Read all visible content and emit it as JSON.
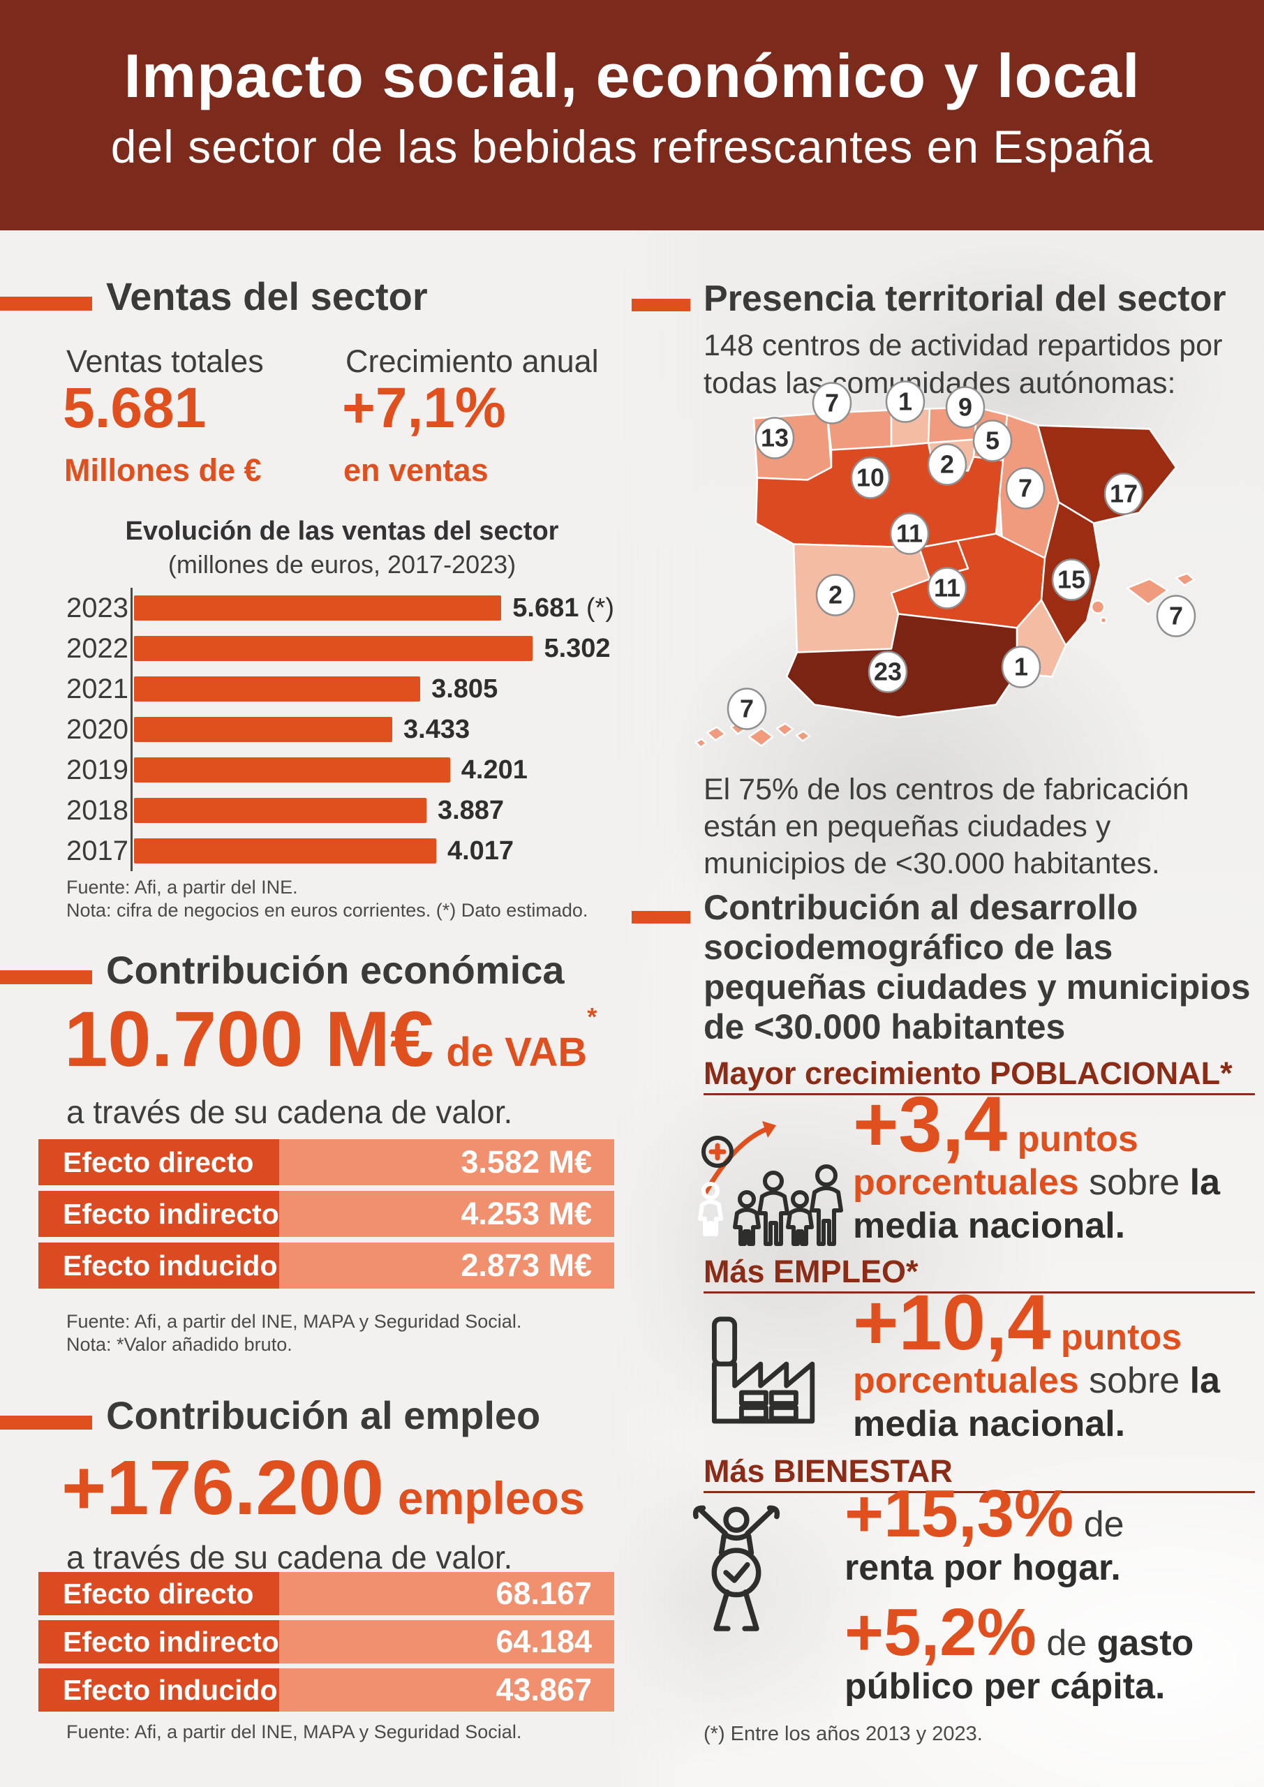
{
  "palette": {
    "header_bg": "#7B2A1B",
    "accent_orange": "#E0501F",
    "table_label_bg": "#DC4A22",
    "table_value_bg": "#F1906E",
    "dark_text": "#3A3A38",
    "maroon_subhead": "#8C2B16",
    "badge_border": "#8F8F8F",
    "page_bg": "#F2F1EF",
    "map_tones": {
      "pale": "#F5BCA4",
      "salmon": "#F09B7E",
      "orange": "#DC4A22",
      "dark2": "#9C2D12",
      "dark1": "#7C2413"
    }
  },
  "header": {
    "title": "Impacto social, económico y local",
    "subtitle": "del sector de las bebidas refrescantes en España"
  },
  "sales": {
    "heading": "Ventas del sector",
    "total_label": "Ventas totales",
    "total_value": "5.681",
    "total_unit": "Millones de €",
    "growth_label": "Crecimiento anual",
    "growth_value": "+7,1%",
    "growth_unit": "en ventas"
  },
  "chart_data": {
    "type": "bar",
    "title": "Evolución de las ventas del sector",
    "subtitle": "(millones de euros, 2017-2023)",
    "categories": [
      "2023",
      "2022",
      "2021",
      "2020",
      "2019",
      "2018",
      "2017"
    ],
    "values": [
      5681,
      5302,
      3805,
      3433,
      4201,
      3887,
      4017
    ],
    "labels": [
      "5.681",
      "5.302",
      "3.805",
      "3.433",
      "4.201",
      "3.887",
      "4.017"
    ],
    "notes": [
      " (*)",
      "",
      "",
      "",
      "",
      "",
      ""
    ],
    "xlabel": "",
    "ylabel": "",
    "xlim": [
      0,
      5681
    ],
    "grid": false,
    "legend": "none",
    "source": "Fuente: Afi, a partir del INE.",
    "note": "Nota: cifra de negocios en euros corrientes. (*) Dato estimado."
  },
  "economic": {
    "heading": "Contribución económica",
    "big": "10.700 M€",
    "big_suffix": "de VAB",
    "big_sup": "*",
    "tagline": "a través de su cadena de valor.",
    "rows": [
      {
        "label": "Efecto directo",
        "value": "3.582 M€"
      },
      {
        "label": "Efecto indirecto",
        "value": "4.253 M€"
      },
      {
        "label": "Efecto inducido",
        "value": "2.873 M€"
      }
    ],
    "source": "Fuente: Afi, a partir del INE, MAPA y Seguridad Social.",
    "note": "Nota: *Valor añadido bruto."
  },
  "employment": {
    "heading": "Contribución al empleo",
    "big": "+176.200",
    "big_suffix": "empleos",
    "tagline": "a través de su cadena de valor.",
    "rows": [
      {
        "label": "Efecto directo",
        "value": "68.167"
      },
      {
        "label": "Efecto indirecto",
        "value": "64.184"
      },
      {
        "label": "Efecto inducido",
        "value": "43.867"
      }
    ],
    "source": "Fuente: Afi, a partir del INE, MAPA y Seguridad Social."
  },
  "territorial": {
    "heading": "Presencia territorial del sector",
    "intro": "148 centros de actividad repartidos por todas las comunidades autónomas:",
    "outro": "El 75% de los centros de fabricación están en pequeñas ciudades y municipios de <30.000 habitantes.",
    "total_centers": 148,
    "regions": [
      {
        "name": "galicia",
        "count": "13",
        "tone": "salmon"
      },
      {
        "name": "asturias",
        "count": "7",
        "tone": "salmon"
      },
      {
        "name": "cantabria",
        "count": "1",
        "tone": "pale"
      },
      {
        "name": "pais_vasco",
        "count": "9",
        "tone": "salmon"
      },
      {
        "name": "navarra",
        "count": "5",
        "tone": "salmon"
      },
      {
        "name": "la_rioja",
        "count": "2",
        "tone": "pale"
      },
      {
        "name": "castilla_y_leon",
        "count": "10",
        "tone": "orange"
      },
      {
        "name": "aragon",
        "count": "7",
        "tone": "salmon"
      },
      {
        "name": "cataluna",
        "count": "17",
        "tone": "dark2"
      },
      {
        "name": "madrid",
        "count": "11",
        "tone": "orange"
      },
      {
        "name": "extremadura",
        "count": "2",
        "tone": "pale"
      },
      {
        "name": "castilla_la_mancha",
        "count": "11",
        "tone": "orange"
      },
      {
        "name": "comunidad_valenciana",
        "count": "15",
        "tone": "dark2"
      },
      {
        "name": "murcia",
        "count": "1",
        "tone": "pale"
      },
      {
        "name": "andalucia",
        "count": "23",
        "tone": "dark1"
      },
      {
        "name": "baleares",
        "count": "7",
        "tone": "salmon"
      },
      {
        "name": "canarias",
        "count": "7",
        "tone": "salmon"
      }
    ]
  },
  "development": {
    "heading": "Contribución al desarrollo sociodemográfico de las pequeñas ciudades y municipios de <30.000 habitantes",
    "block1": {
      "subhead": "Mayor crecimiento POBLACIONAL*",
      "icon": "population-growth-icon",
      "big": "+3,4",
      "unit": "puntos porcentuales",
      "connector": "sobre",
      "tail": "la media nacional."
    },
    "block2": {
      "subhead": "Más EMPLEO*",
      "icon": "factory-icon",
      "big": "+10,4",
      "unit": "puntos porcentuales",
      "connector": "sobre",
      "tail": "la media nacional."
    },
    "block3": {
      "subhead": "Más BIENESTAR",
      "icon": "wellbeing-icon",
      "stats": [
        {
          "big": "+15,3%",
          "connector": "de",
          "tail": "renta por hogar."
        },
        {
          "big": "+5,2%",
          "connector": "de",
          "tail": "gasto público per cápita."
        }
      ]
    },
    "footnote": "(*) Entre los años 2013 y 2023."
  }
}
